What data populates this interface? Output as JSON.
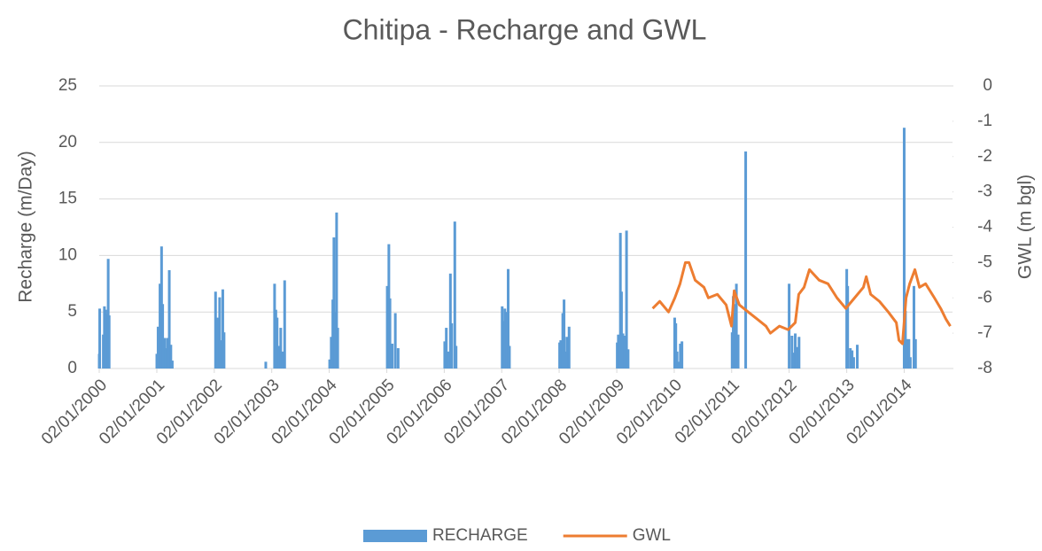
{
  "chart_data": {
    "type": "bar-line",
    "title": "Chitipa - Recharge and GWL",
    "y_label": "Recharge (m/Day)",
    "y2_label": "GWL (m bgl)",
    "xlim": [
      "02/01/2000",
      "05/11/2014"
    ],
    "xticks": [
      "02/01/2000",
      "02/01/2001",
      "02/01/2002",
      "02/01/2003",
      "02/01/2004",
      "02/01/2005",
      "02/01/2006",
      "02/01/2007",
      "02/01/2008",
      "02/01/2009",
      "02/01/2010",
      "02/01/2011",
      "02/01/2012",
      "02/01/2013",
      "02/01/2014"
    ],
    "ylim": [
      0,
      25
    ],
    "yticks": [
      0,
      5,
      10,
      15,
      20,
      25
    ],
    "y2lim": [
      -8,
      0
    ],
    "y2ticks": [
      0,
      -1,
      -2,
      -3,
      -4,
      -5,
      -6,
      -7,
      -8
    ],
    "grid": true,
    "legend": "bottom",
    "series": [
      {
        "name": "RECHARGE",
        "type": "bar",
        "color": "#5b9bd5",
        "x": [
          "02/01/2000",
          "05/01/2000",
          "28/01/2000",
          "04/02/2000",
          "12/02/2000",
          "20/02/2000",
          "28/02/2000",
          "05/03/2000",
          "02/01/2001",
          "10/01/2001",
          "22/01/2001",
          "01/02/2001",
          "08/02/2001",
          "20/02/2001",
          "28/02/2001",
          "10/03/2001",
          "22/03/2001",
          "01/04/2001",
          "10/04/2001",
          "10/01/2002",
          "15/01/2002",
          "25/01/2002",
          "05/02/2002",
          "12/02/2002",
          "25/02/2002",
          "05/03/2002",
          "25/11/2002",
          "20/01/2003",
          "28/01/2003",
          "05/02/2003",
          "15/02/2003",
          "28/02/2003",
          "10/03/2003",
          "25/03/2003",
          "05/01/2004",
          "15/01/2004",
          "25/01/2004",
          "01/02/2004",
          "08/02/2004",
          "18/02/2004",
          "25/02/2004",
          "05/01/2005",
          "15/01/2005",
          "22/01/2005",
          "05/02/2005",
          "25/02/2005",
          "15/03/2005",
          "05/01/2006",
          "15/01/2006",
          "25/01/2006",
          "10/02/2006",
          "18/02/2006",
          "10/03/2006",
          "18/03/2006",
          "05/01/2007",
          "12/01/2007",
          "22/01/2007",
          "01/02/2007",
          "12/02/2007",
          "20/02/2007",
          "05/01/2008",
          "12/01/2008",
          "25/01/2008",
          "02/02/2008",
          "10/02/2008",
          "20/02/2008",
          "05/03/2008",
          "05/01/2009",
          "12/01/2009",
          "25/01/2009",
          "01/02/2009",
          "10/02/2009",
          "20/02/2009",
          "05/03/2009",
          "15/03/2009",
          "05/01/2010",
          "12/01/2010",
          "20/01/2010",
          "28/01/2010",
          "10/02/2010",
          "20/02/2010",
          "05/01/2011",
          "12/01/2011",
          "22/01/2011",
          "01/02/2011",
          "12/02/2011",
          "01/04/2011",
          "02/01/2012",
          "20/01/2012",
          "01/02/2012",
          "10/02/2012",
          "20/02/2012",
          "05/03/2012",
          "02/01/2013",
          "08/01/2013",
          "25/01/2013",
          "05/02/2013",
          "15/02/2013",
          "10/03/2013",
          "02/01/2014",
          "10/01/2014",
          "20/01/2014",
          "01/02/2014",
          "10/02/2014",
          "05/03/2014",
          "15/03/2014"
        ],
        "values": [
          1.3,
          5.3,
          3.0,
          5.5,
          5.2,
          4.8,
          9.7,
          4.7,
          1.3,
          3.7,
          7.5,
          10.8,
          5.7,
          2.7,
          1.8,
          2.7,
          8.7,
          2.1,
          0.7,
          6.8,
          3.2,
          4.5,
          6.3,
          2.5,
          7.0,
          3.2,
          0.6,
          7.5,
          5.2,
          4.5,
          2.0,
          3.6,
          1.5,
          7.8,
          0.8,
          2.8,
          6.1,
          11.6,
          5.0,
          13.8,
          3.6,
          7.3,
          11.0,
          6.2,
          2.2,
          4.9,
          1.8,
          2.4,
          3.6,
          1.5,
          8.4,
          4.0,
          13.0,
          2.0,
          5.5,
          4.2,
          5.3,
          5.0,
          8.8,
          2.0,
          2.3,
          2.5,
          4.9,
          6.1,
          1.5,
          2.8,
          3.7,
          2.3,
          3.0,
          12.0,
          6.8,
          3.1,
          2.9,
          12.2,
          1.7,
          4.5,
          4.0,
          1.5,
          0.6,
          2.2,
          2.4,
          3.2,
          6.4,
          5.7,
          7.5,
          3.0,
          19.2,
          7.5,
          2.9,
          1.4,
          3.1,
          1.9,
          2.8,
          8.8,
          7.3,
          1.8,
          1.6,
          1.0,
          2.1,
          21.3,
          5.1,
          2.6,
          2.6,
          1.0,
          7.3,
          2.6
        ]
      },
      {
        "name": "GWL",
        "type": "line",
        "axis": "y2",
        "color": "#ed7d31",
        "x": [
          "18/08/2009",
          "02/10/2009",
          "27/11/2009",
          "06/01/2010",
          "08/02/2010",
          "14/03/2010",
          "06/04/2010",
          "15/05/2010",
          "10/07/2010",
          "07/08/2010",
          "03/10/2010",
          "28/11/2010",
          "01/01/2011",
          "18/01/2011",
          "20/02/2011",
          "17/04/2011",
          "13/06/2011",
          "08/08/2011",
          "05/09/2011",
          "01/11/2011",
          "27/12/2011",
          "10/02/2012",
          "03/03/2012",
          "06/04/2012",
          "10/05/2012",
          "11/07/2012",
          "05/09/2012",
          "01/11/2012",
          "27/12/2012",
          "21/02/2013",
          "18/04/2013",
          "06/05/2013",
          "03/06/2013",
          "29/07/2013",
          "23/09/2013",
          "13/11/2013",
          "30/11/2013",
          "22/12/2013",
          "14/01/2014",
          "06/02/2014",
          "11/03/2014",
          "09/04/2014",
          "18/05/2014",
          "13/07/2014",
          "22/08/2014",
          "24/09/2014",
          "22/10/2014"
        ],
        "values": [
          -6.3,
          -6.1,
          -6.4,
          -6.0,
          -5.6,
          -5.0,
          -5.0,
          -5.5,
          -5.7,
          -6.0,
          -5.9,
          -6.2,
          -6.8,
          -5.8,
          -6.2,
          -6.4,
          -6.6,
          -6.8,
          -7.0,
          -6.8,
          -6.9,
          -6.7,
          -5.9,
          -5.7,
          -5.2,
          -5.5,
          -5.6,
          -6.0,
          -6.3,
          -6.0,
          -5.7,
          -5.4,
          -5.9,
          -6.1,
          -6.4,
          -6.7,
          -7.2,
          -7.3,
          -6.0,
          -5.6,
          -5.2,
          -5.7,
          -5.6,
          -6.0,
          -6.3,
          -6.6,
          -6.8
        ]
      }
    ]
  }
}
